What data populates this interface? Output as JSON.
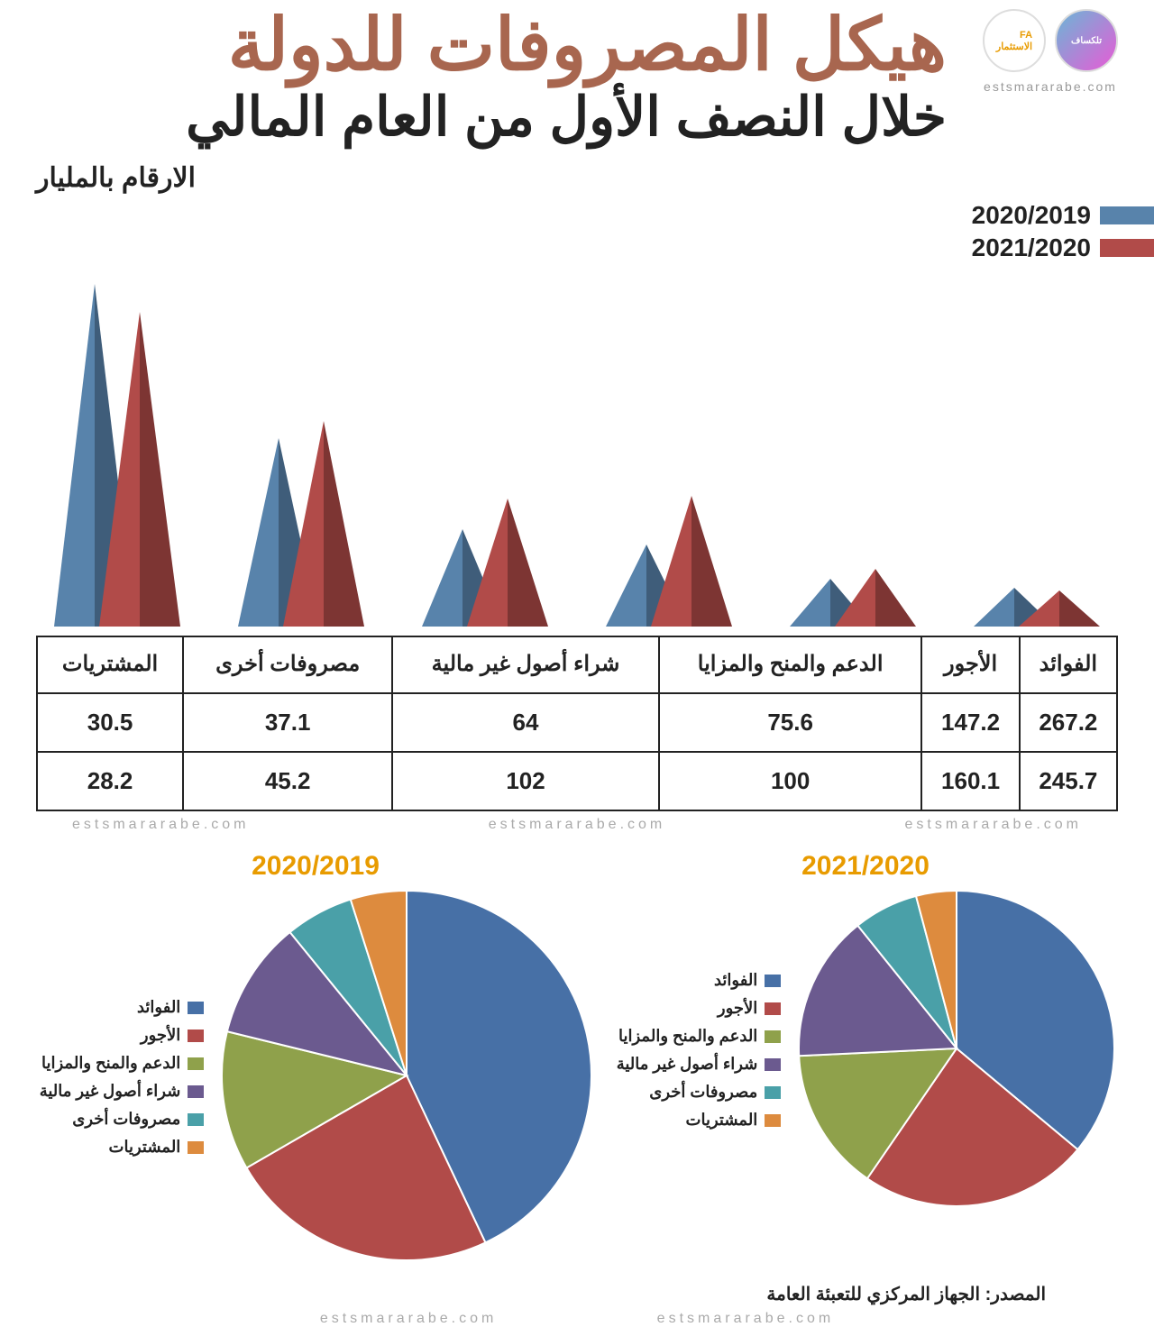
{
  "title": "هيكل المصروفات للدولة",
  "subtitle": "خلال النصف الأول من العام المالي",
  "legend_title": "الارقام بالمليار",
  "series": [
    {
      "label": "2020/2019",
      "color": "#5883ab",
      "dark": "#3f5d7a"
    },
    {
      "label": "2021/2020",
      "color": "#b14b49",
      "dark": "#7d3533"
    }
  ],
  "categories": [
    "الفوائد",
    "الأجور",
    "الدعم والمنح والمزايا",
    "شراء أصول غير مالية",
    "مصروفات أخرى",
    "المشتريات"
  ],
  "values_2019_20": [
    267.2,
    147.2,
    75.6,
    64,
    37.1,
    30.5
  ],
  "values_2020_21": [
    245.7,
    160.1,
    100,
    102,
    45.2,
    28.2
  ],
  "max_value": 267.2,
  "cone_max_height": 380,
  "cone_base_width": 90,
  "domain": "estsmararabe.com",
  "pies": [
    {
      "title": "2021/2020",
      "values": [
        245.7,
        160.1,
        100,
        102,
        45.2,
        28.2
      ],
      "size": 350
    },
    {
      "title": "2020/2019",
      "values": [
        267.2,
        147.2,
        75.6,
        64,
        37.1,
        30.5
      ],
      "size": 410
    }
  ],
  "pie_palette": [
    "#4770a6",
    "#b14b49",
    "#8fa14b",
    "#6b5a8f",
    "#4aa0a8",
    "#dd8b3e"
  ],
  "pie_labels": [
    "الفوائد",
    "الأجور",
    "الدعم والمنح والمزايا",
    "شراء أصول غير مالية",
    "مصروفات أخرى",
    "المشتريات"
  ],
  "source": "المصدر: الجهاز المركزي للتعبئة العامة"
}
